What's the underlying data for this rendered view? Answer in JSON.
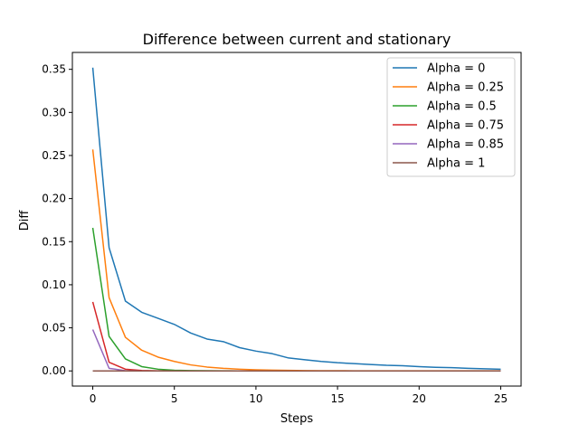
{
  "chart_data": {
    "type": "line",
    "title": "Difference between current and stationary",
    "xlabel": "Steps",
    "ylabel": "Diff",
    "xlim": [
      -1.25,
      26.25
    ],
    "ylim": [
      -0.0176,
      0.3696
    ],
    "xticks": [
      0,
      5,
      10,
      15,
      20,
      25
    ],
    "xtick_labels": [
      "0",
      "5",
      "10",
      "15",
      "20",
      "25"
    ],
    "yticks": [
      0.0,
      0.05,
      0.1,
      0.15,
      0.2,
      0.25,
      0.3,
      0.35
    ],
    "ytick_labels": [
      "0.00",
      "0.05",
      "0.10",
      "0.15",
      "0.20",
      "0.25",
      "0.30",
      "0.35"
    ],
    "grid": false,
    "legend_position": "top-right",
    "x": [
      0,
      1,
      2,
      3,
      4,
      5,
      6,
      7,
      8,
      9,
      10,
      11,
      12,
      13,
      14,
      15,
      16,
      17,
      18,
      19,
      20,
      21,
      22,
      23,
      24,
      25
    ],
    "series": [
      {
        "name": "Alpha = 0",
        "color": "#1f77b4",
        "values": [
          0.352,
          0.143,
          0.081,
          0.068,
          0.061,
          0.054,
          0.044,
          0.037,
          0.034,
          0.027,
          0.023,
          0.02,
          0.015,
          0.013,
          0.011,
          0.0095,
          0.0085,
          0.0075,
          0.0065,
          0.006,
          0.005,
          0.0042,
          0.0038,
          0.003,
          0.0025,
          0.002
        ]
      },
      {
        "name": "Alpha = 0.25",
        "color": "#ff7f0e",
        "values": [
          0.257,
          0.085,
          0.039,
          0.024,
          0.016,
          0.011,
          0.007,
          0.0045,
          0.003,
          0.002,
          0.0013,
          0.0009,
          0.0006,
          0.0004,
          0.0003,
          0.0002,
          0.00015,
          0.0001,
          0.0001,
          0.0001,
          0.0001,
          0.0001,
          0.0001,
          0.0001,
          0.0001,
          0.0001
        ]
      },
      {
        "name": "Alpha = 0.5",
        "color": "#2ca02c",
        "values": [
          0.166,
          0.04,
          0.014,
          0.005,
          0.002,
          0.0008,
          0.0004,
          0.0002,
          0.0001,
          0,
          0,
          0,
          0,
          0,
          0,
          0,
          0,
          0,
          0,
          0,
          0,
          0,
          0,
          0,
          0,
          0
        ]
      },
      {
        "name": "Alpha = 0.75",
        "color": "#d62728",
        "values": [
          0.08,
          0.01,
          0.002,
          0.0005,
          0.0001,
          0,
          0,
          0,
          0,
          0,
          0,
          0,
          0,
          0,
          0,
          0,
          0,
          0,
          0,
          0,
          0,
          0,
          0,
          0,
          0,
          0
        ]
      },
      {
        "name": "Alpha = 0.85",
        "color": "#9467bd",
        "values": [
          0.048,
          0.003,
          0.0003,
          0,
          0,
          0,
          0,
          0,
          0,
          0,
          0,
          0,
          0,
          0,
          0,
          0,
          0,
          0,
          0,
          0,
          0,
          0,
          0,
          0,
          0,
          0
        ]
      },
      {
        "name": "Alpha = 1",
        "color": "#8c564b",
        "values": [
          0,
          0,
          0,
          0,
          0,
          0,
          0,
          0,
          0,
          0,
          0,
          0,
          0,
          0,
          0,
          0,
          0,
          0,
          0,
          0,
          0,
          0,
          0,
          0,
          0,
          0
        ]
      }
    ]
  }
}
